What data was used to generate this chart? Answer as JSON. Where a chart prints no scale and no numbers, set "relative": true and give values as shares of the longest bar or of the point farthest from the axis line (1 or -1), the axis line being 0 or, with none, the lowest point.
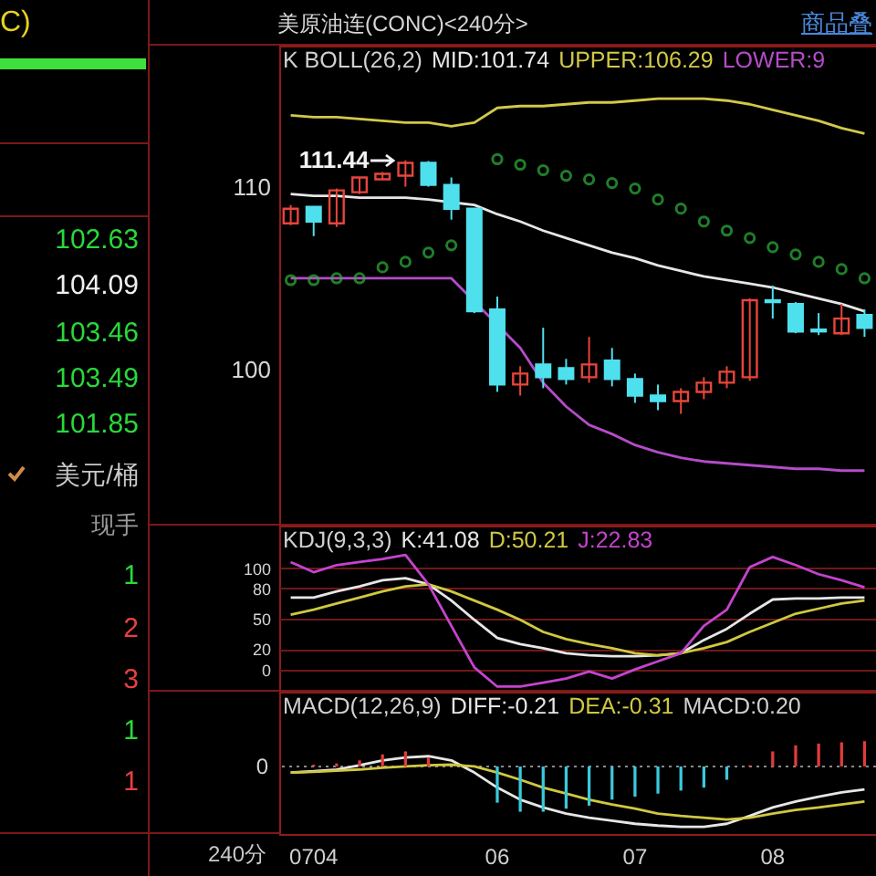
{
  "chart_data": [
    {
      "type": "other",
      "annotations": [
        "C)",
        "102.63",
        "104.09",
        "103.46",
        "103.49",
        "101.85",
        "美元/桶",
        "现手",
        "1",
        "2",
        "3",
        "1",
        "1"
      ]
    },
    {
      "type": "candlestick",
      "title": "美原油连(CONC)<240分>",
      "subtitle": "K BOLL(26,2)",
      "legend": "top",
      "tick_labels": "y",
      "categories": [
        null,
        "0704",
        null,
        null,
        null,
        null,
        null,
        null,
        null,
        "06",
        null,
        null,
        null,
        null,
        null,
        "07",
        null,
        null,
        null,
        null,
        null,
        "08",
        null,
        null,
        null,
        null
      ],
      "ylim": [
        91.5,
        117.7
      ],
      "yticks": [
        100,
        110
      ],
      "ohlc": [
        [
          108.0,
          109.0,
          107.9,
          108.8
        ],
        [
          108.9,
          108.9,
          107.3,
          108.1
        ],
        [
          108.0,
          109.9,
          107.8,
          109.8
        ],
        [
          109.7,
          110.5,
          109.6,
          110.5
        ],
        [
          110.4,
          110.8,
          110.4,
          110.7
        ],
        [
          110.6,
          111.44,
          110.0,
          111.3
        ],
        [
          111.3,
          111.4,
          110.0,
          110.1
        ],
        [
          110.1,
          110.5,
          108.2,
          108.8
        ],
        [
          108.8,
          108.8,
          103.1,
          103.2
        ],
        [
          103.3,
          104.0,
          98.8,
          99.2
        ],
        [
          99.2,
          100.2,
          98.6,
          99.8
        ],
        [
          100.3,
          102.3,
          99.0,
          99.6
        ],
        [
          100.1,
          100.6,
          99.2,
          99.5
        ],
        [
          99.6,
          101.8,
          99.3,
          100.3
        ],
        [
          100.5,
          101.2,
          99.1,
          99.5
        ],
        [
          99.5,
          99.8,
          98.2,
          98.6
        ],
        [
          98.6,
          99.2,
          97.8,
          98.3
        ],
        [
          98.3,
          99.0,
          97.6,
          98.8
        ],
        [
          98.8,
          99.6,
          98.4,
          99.3
        ],
        [
          99.3,
          100.2,
          99.0,
          99.9
        ],
        [
          99.6,
          103.9,
          99.4,
          103.8
        ],
        [
          103.8,
          104.6,
          102.8,
          103.7
        ],
        [
          103.6,
          103.7,
          102.0,
          102.1
        ],
        [
          102.2,
          103.1,
          101.9,
          102.1
        ],
        [
          102.0,
          103.6,
          101.9,
          102.8
        ],
        [
          103.0,
          103.3,
          101.8,
          102.3
        ]
      ],
      "colors": [
        "#e8453c",
        "#4fe0ee",
        "#e8453c",
        "#e8453c",
        "#e8453c",
        "#e8453c",
        "#4fe0ee",
        "#4fe0ee",
        "#4fe0ee",
        "#4fe0ee",
        "#e8453c",
        "#4fe0ee",
        "#4fe0ee",
        "#e8453c",
        "#4fe0ee",
        "#4fe0ee",
        "#4fe0ee",
        "#e8453c",
        "#e8453c",
        "#e8453c",
        "#e8453c",
        "#4fe0ee",
        "#4fe0ee",
        "#4fe0ee",
        "#e8453c",
        "#4fe0ee"
      ],
      "series": [
        {
          "name": "MID:101.74",
          "type": "line",
          "color": "#e6e6e6",
          "values": [
            109.6,
            109.5,
            109.5,
            109.4,
            109.4,
            109.4,
            109.3,
            null,
            109.0,
            108.5,
            108.1,
            107.6,
            107.2,
            106.8,
            106.4,
            106.1,
            105.7,
            105.4,
            105.1,
            104.9,
            104.7,
            104.5,
            104.2,
            103.9,
            103.6,
            103.2
          ]
        },
        {
          "name": "UPPER:106.29",
          "type": "line",
          "color": "#d2c84a",
          "values": [
            113.9,
            113.8,
            113.8,
            113.7,
            113.6,
            113.5,
            113.5,
            113.3,
            113.5,
            114.3,
            114.4,
            114.4,
            114.5,
            114.6,
            114.6,
            114.7,
            114.8,
            114.8,
            114.8,
            114.7,
            114.5,
            114.2,
            113.9,
            113.6,
            113.2,
            112.9
          ]
        },
        {
          "name": "LOWER:9",
          "type": "line",
          "color": "#b44cc8",
          "values": [
            105.0,
            105.0,
            105.0,
            105.0,
            105.0,
            105.0,
            105.0,
            105.0,
            null,
            null,
            101.2,
            99.3,
            98.0,
            97.0,
            96.5,
            95.9,
            95.5,
            95.2,
            95.0,
            94.9,
            94.8,
            94.7,
            94.6,
            94.6,
            94.5,
            94.5
          ]
        },
        {
          "type": "scatter",
          "marker": "circle",
          "color": "#2fb43c",
          "values": [
            104.9,
            104.9,
            105.0,
            105.0,
            105.6,
            105.9,
            106.4,
            106.8,
            null,
            111.5,
            111.2,
            110.9,
            110.6,
            110.4,
            110.2,
            109.9,
            109.3,
            108.8,
            108.1,
            107.6,
            107.2,
            106.7,
            106.3,
            105.9,
            105.5,
            105.0
          ]
        }
      ],
      "annotations": [
        "商品叠",
        "111.44"
      ]
    },
    {
      "type": "line",
      "title": "KDJ(9,3,3)",
      "legend": "top",
      "tick_labels": "y",
      "grid": "y",
      "categories": [
        null,
        "0704",
        null,
        null,
        null,
        null,
        null,
        null,
        null,
        "06",
        null,
        null,
        null,
        null,
        null,
        "07",
        null,
        null,
        null,
        null,
        null,
        "08",
        null,
        null,
        null,
        null
      ],
      "ylim": [
        -22,
        142
      ],
      "yticks": [
        0,
        20,
        50,
        80,
        100
      ],
      "series": [
        {
          "name": "K:41.08",
          "color": "#e6e6e6",
          "values": [
            71,
            71,
            77,
            82,
            88,
            90,
            84,
            68,
            49,
            31,
            25,
            21,
            16,
            14,
            13,
            13,
            14,
            16,
            29,
            40,
            55,
            69,
            70,
            70,
            71,
            71
          ]
        },
        {
          "name": "D:50.21",
          "color": "#cfc840",
          "values": [
            54,
            59,
            65,
            71,
            77,
            82,
            84,
            77,
            68,
            59,
            49,
            37,
            30,
            25,
            21,
            16,
            14,
            16,
            21,
            27,
            37,
            46,
            55,
            60,
            65,
            68
          ]
        },
        {
          "name": "J:22.83",
          "color": "#c444cc",
          "values": [
            106,
            96,
            103,
            106,
            109,
            113,
            84,
            43,
            2,
            -17,
            -17,
            -13,
            -9,
            -2,
            -9,
            0,
            8,
            16,
            43,
            59,
            101,
            111,
            103,
            94,
            88,
            81
          ]
        }
      ]
    },
    {
      "type": "line",
      "title": "MACD(12,26,9)",
      "legend": "top",
      "tick_labels": "x",
      "relative": true,
      "categories": [
        null,
        "0704",
        null,
        null,
        null,
        null,
        null,
        null,
        null,
        "06",
        null,
        null,
        null,
        null,
        null,
        "07",
        null,
        null,
        null,
        null,
        null,
        "08",
        null,
        null,
        null,
        null
      ],
      "ref_lines": [
        {
          "axis": "y",
          "value": 0,
          "label": "0",
          "line_style": "dotted"
        }
      ],
      "series": [
        {
          "name": "DIFF:-0.21",
          "type": "line",
          "color": "#e6e6e6",
          "values": [
            -0.1,
            -0.08,
            -0.05,
            0.02,
            0.1,
            0.15,
            0.17,
            0.1,
            -0.1,
            -0.35,
            -0.55,
            -0.68,
            -0.78,
            -0.85,
            -0.9,
            -0.95,
            -0.98,
            -1,
            -1,
            -0.95,
            -0.82,
            -0.68,
            -0.58,
            -0.5,
            -0.43,
            -0.38
          ]
        },
        {
          "name": "DEA:-0.31",
          "type": "line",
          "color": "#cfc840",
          "values": [
            -0.1,
            -0.09,
            -0.07,
            -0.05,
            -0.02,
            0,
            0.02,
            0.03,
            0,
            -0.1,
            -0.22,
            -0.35,
            -0.45,
            -0.55,
            -0.63,
            -0.7,
            -0.78,
            -0.82,
            -0.85,
            -0.88,
            -0.85,
            -0.78,
            -0.72,
            -0.68,
            -0.63,
            -0.58
          ]
        },
        {
          "type": "bar",
          "colors": [
            null,
            "#e03c3c",
            "#e03c3c",
            "#e03c3c",
            "#e03c3c",
            "#e03c3c",
            "#e03c3c",
            null,
            null,
            "#3cc8dc",
            "#3cc8dc",
            "#3cc8dc",
            "#3cc8dc",
            "#3cc8dc",
            "#3cc8dc",
            "#3cc8dc",
            "#3cc8dc",
            "#3cc8dc",
            "#3cc8dc",
            "#3cc8dc",
            "#e03c3c",
            "#e03c3c",
            "#e03c3c",
            "#e03c3c",
            "#e03c3c",
            "#e03c3c"
          ],
          "values": [
            null,
            0.03,
            0.05,
            0.1,
            0.2,
            0.25,
            0.15,
            null,
            null,
            -0.6,
            -0.75,
            -0.75,
            -0.7,
            -0.65,
            -0.55,
            -0.5,
            -0.45,
            -0.4,
            -0.35,
            -0.22,
            0.02,
            0.25,
            0.35,
            0.38,
            0.4,
            0.42
          ]
        }
      ],
      "annotations": [
        "MACD:0.20",
        "240分"
      ]
    }
  ]
}
